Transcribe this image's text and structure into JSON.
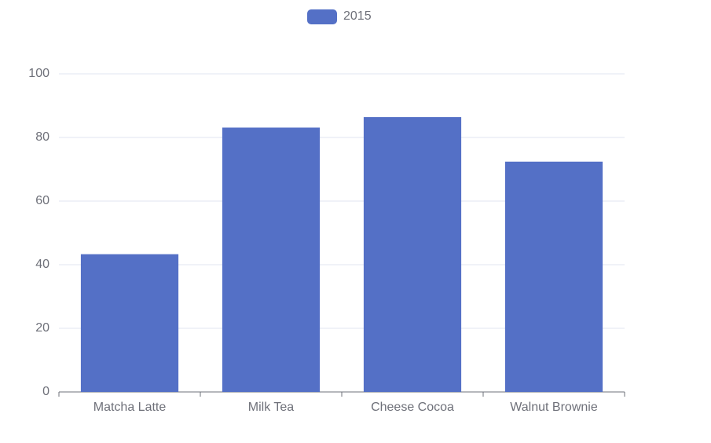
{
  "chart_data": {
    "type": "bar",
    "categories": [
      "Matcha Latte",
      "Milk Tea",
      "Cheese Cocoa",
      "Walnut Brownie"
    ],
    "series": [
      {
        "name": "2015",
        "color": "#5470c6",
        "values": [
          43.3,
          83.1,
          86.4,
          72.4
        ]
      }
    ],
    "ylim": [
      0,
      100
    ],
    "yticks": [
      0,
      20,
      40,
      60,
      80,
      100
    ],
    "grid": true,
    "legend": "top"
  }
}
